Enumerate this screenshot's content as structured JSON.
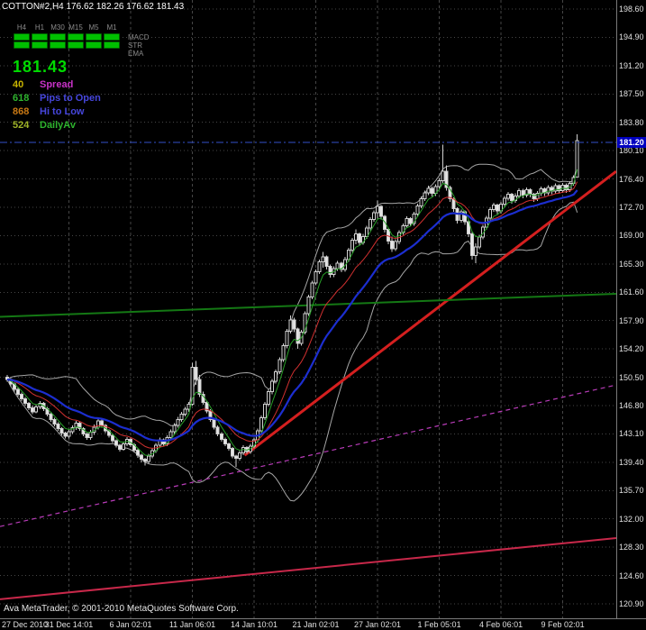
{
  "window": {
    "title_line": "COTTON#2,H4 176.62 182.26 176.62 181.43",
    "footer": "Ava MetaTrader, © 2001-2010 MetaQuotes Software Corp."
  },
  "panel": {
    "timeframes": [
      "H4",
      "H1",
      "M30",
      "M15",
      "M5",
      "M1"
    ],
    "indicators": [
      "MACD",
      "STR",
      "EMA"
    ],
    "big_price": "181.43",
    "big_price_color": "#00dc00",
    "info_rows": [
      {
        "value": "40",
        "label": "Spread",
        "value_color": "#c8b400",
        "label_color": "#c832c8"
      },
      {
        "value": "618",
        "label": "Pips to Open",
        "value_color": "#2eb42e",
        "label_color": "#4646dc"
      },
      {
        "value": "868",
        "label": "Hi to Low",
        "value_color": "#c87814",
        "label_color": "#4646dc"
      },
      {
        "value": "524",
        "label": "DailyAv",
        "value_color": "#a0b428",
        "label_color": "#2eb42e"
      }
    ]
  },
  "price_axis": {
    "ticks": [
      "198.60",
      "194.90",
      "191.20",
      "187.50",
      "183.80",
      "180.10",
      "176.40",
      "172.70",
      "169.00",
      "165.30",
      "161.60",
      "157.90",
      "154.20",
      "150.50",
      "146.80",
      "143.10",
      "139.40",
      "135.70",
      "132.00",
      "128.30",
      "124.60",
      "120.90"
    ],
    "bid_badge": {
      "text": "181.20",
      "bg": "#0000c0"
    }
  },
  "chart_data": {
    "type": "candlestick",
    "symbol": "COTTON#2",
    "timeframe": "H4",
    "current_bar": {
      "open": 176.62,
      "high": 182.26,
      "low": 176.62,
      "close": 181.43
    },
    "y_axis": {
      "min": 120.9,
      "max": 198.6,
      "step": 3.7
    },
    "grid_color": "#464646",
    "candle_colors": {
      "up_fill": "#000000",
      "down_fill": "#e6e6e6",
      "outline": "#cfcfcf"
    },
    "x_axis": {
      "labels": [
        {
          "text": "27 Dec 2010",
          "index": 0
        },
        {
          "text": "31 Dec 14:01",
          "index": 17
        },
        {
          "text": "6 Jan 02:01",
          "index": 34
        },
        {
          "text": "11 Jan 06:01",
          "index": 51
        },
        {
          "text": "14 Jan 10:01",
          "index": 68
        },
        {
          "text": "21 Jan 02:01",
          "index": 85
        },
        {
          "text": "27 Jan 02:01",
          "index": 102
        },
        {
          "text": "1 Feb 05:01",
          "index": 119
        },
        {
          "text": "4 Feb 06:01",
          "index": 136
        },
        {
          "text": "9 Feb 02:01",
          "index": 153
        }
      ]
    },
    "overlays": {
      "bid_line": {
        "price": 181.2,
        "color": "#3350c8",
        "style": "dashdot"
      },
      "moving_averages": [
        {
          "name": "fast-green-ma",
          "period": 5,
          "color": "#28a028",
          "width": 1
        },
        {
          "name": "mid-red-ma",
          "period": 13,
          "color": "#d03030",
          "width": 1
        },
        {
          "name": "slow-blue-ma",
          "period": 24,
          "color": "#1c2ed0",
          "width": 2.2
        }
      ],
      "bollinger": {
        "period": 20,
        "deviation": 2,
        "color": "#a6a6a6"
      },
      "trendlines": [
        {
          "name": "red-uptrend",
          "x1_frac": 0.397,
          "p1": 140.3,
          "x2_frac": 1.0,
          "p2": 177.4,
          "color": "#d41f1f",
          "width": 3,
          "dash": false
        },
        {
          "name": "green-horizontal",
          "x1_frac": 0.0,
          "p1": 158.4,
          "x2_frac": 1.0,
          "p2": 161.4,
          "color": "#147814",
          "width": 2,
          "dash": false
        },
        {
          "name": "magenta-dashed",
          "x1_frac": 0.0,
          "p1": 131.0,
          "x2_frac": 1.0,
          "p2": 149.5,
          "color": "#b93cb9",
          "width": 1.2,
          "dash": true
        },
        {
          "name": "crimson-lower",
          "x1_frac": 0.0,
          "p1": 121.5,
          "x2_frac": 1.0,
          "p2": 129.5,
          "color": "#c8284a",
          "width": 2,
          "dash": false
        }
      ]
    },
    "candles": [
      [
        150.5,
        150.8,
        149.9,
        150.2
      ],
      [
        150.2,
        150.4,
        149.3,
        149.6
      ],
      [
        149.6,
        149.8,
        148.6,
        148.9
      ],
      [
        148.9,
        149.2,
        148.0,
        148.3
      ],
      [
        148.3,
        148.5,
        147.4,
        147.7
      ],
      [
        147.7,
        147.9,
        146.8,
        147.1
      ],
      [
        147.1,
        147.3,
        146.2,
        146.5
      ],
      [
        146.5,
        146.8,
        145.7,
        146.0
      ],
      [
        146.0,
        146.9,
        145.8,
        146.6
      ],
      [
        146.6,
        147.4,
        146.3,
        147.1
      ],
      [
        147.1,
        147.3,
        146.1,
        146.4
      ],
      [
        146.4,
        146.6,
        145.4,
        145.7
      ],
      [
        145.7,
        145.9,
        144.7,
        145.0
      ],
      [
        145.0,
        145.2,
        144.1,
        144.4
      ],
      [
        144.4,
        144.6,
        143.5,
        143.8
      ],
      [
        143.8,
        144.0,
        142.9,
        143.2
      ],
      [
        143.2,
        143.4,
        142.5,
        142.8
      ],
      [
        142.8,
        143.7,
        142.5,
        143.4
      ],
      [
        143.4,
        144.2,
        143.1,
        143.9
      ],
      [
        143.9,
        144.8,
        143.6,
        144.5
      ],
      [
        144.5,
        144.7,
        143.5,
        143.8
      ],
      [
        143.8,
        144.0,
        142.8,
        143.1
      ],
      [
        143.1,
        143.3,
        142.3,
        142.6
      ],
      [
        142.6,
        143.6,
        142.3,
        143.3
      ],
      [
        143.3,
        144.3,
        143.0,
        144.0
      ],
      [
        144.0,
        145.1,
        143.7,
        144.8
      ],
      [
        144.8,
        145.0,
        143.9,
        144.2
      ],
      [
        144.2,
        144.4,
        143.2,
        143.5
      ],
      [
        143.5,
        143.7,
        142.6,
        142.9
      ],
      [
        142.9,
        143.1,
        141.9,
        142.2
      ],
      [
        142.2,
        142.4,
        141.3,
        141.6
      ],
      [
        141.6,
        141.8,
        140.8,
        141.1
      ],
      [
        141.1,
        142.1,
        140.9,
        141.8
      ],
      [
        141.8,
        142.7,
        141.5,
        142.4
      ],
      [
        142.4,
        142.6,
        141.4,
        141.7
      ],
      [
        141.7,
        141.9,
        140.7,
        141.0
      ],
      [
        141.0,
        141.2,
        140.0,
        140.3
      ],
      [
        140.3,
        140.5,
        139.4,
        139.8
      ],
      [
        139.8,
        140.0,
        139.0,
        139.5
      ],
      [
        139.5,
        140.5,
        139.2,
        140.2
      ],
      [
        140.2,
        141.2,
        139.9,
        140.9
      ],
      [
        140.9,
        141.9,
        140.6,
        141.6
      ],
      [
        141.6,
        142.6,
        141.3,
        142.3
      ],
      [
        142.3,
        142.5,
        141.5,
        141.8
      ],
      [
        141.8,
        142.9,
        141.5,
        142.6
      ],
      [
        142.6,
        143.7,
        142.3,
        143.4
      ],
      [
        143.4,
        144.5,
        143.1,
        144.2
      ],
      [
        144.2,
        145.3,
        143.9,
        145.0
      ],
      [
        145.0,
        146.0,
        144.7,
        145.7
      ],
      [
        145.7,
        146.6,
        145.4,
        146.3
      ],
      [
        146.3,
        147.3,
        146.0,
        147.0
      ],
      [
        147.0,
        152.4,
        146.8,
        151.8
      ],
      [
        151.8,
        152.6,
        149.5,
        150.2
      ],
      [
        150.2,
        150.8,
        147.9,
        148.3
      ],
      [
        148.3,
        148.6,
        146.9,
        147.2
      ],
      [
        147.2,
        147.4,
        145.8,
        146.1
      ],
      [
        146.1,
        146.3,
        144.7,
        145.0
      ],
      [
        145.0,
        145.2,
        143.7,
        144.0
      ],
      [
        144.0,
        144.2,
        142.8,
        143.1
      ],
      [
        143.1,
        143.3,
        142.1,
        142.4
      ],
      [
        142.4,
        142.6,
        141.5,
        141.8
      ],
      [
        141.8,
        142.0,
        140.9,
        141.2
      ],
      [
        141.2,
        141.4,
        139.9,
        140.2
      ],
      [
        140.2,
        140.4,
        138.8,
        139.9
      ],
      [
        139.9,
        140.9,
        139.6,
        140.6
      ],
      [
        140.6,
        141.6,
        140.3,
        141.3
      ],
      [
        141.3,
        141.5,
        140.5,
        140.8
      ],
      [
        140.8,
        141.8,
        140.5,
        141.5
      ],
      [
        141.5,
        142.6,
        141.2,
        142.3
      ],
      [
        142.3,
        143.8,
        142.0,
        143.5
      ],
      [
        143.5,
        145.5,
        143.2,
        145.2
      ],
      [
        145.2,
        147.3,
        144.9,
        147.0
      ],
      [
        147.0,
        148.9,
        146.7,
        148.6
      ],
      [
        148.6,
        150.3,
        148.3,
        150.0
      ],
      [
        150.0,
        151.5,
        149.7,
        151.2
      ],
      [
        151.2,
        153.1,
        150.9,
        152.8
      ],
      [
        152.8,
        154.9,
        152.5,
        154.6
      ],
      [
        154.6,
        156.8,
        154.3,
        156.5
      ],
      [
        156.5,
        158.6,
        156.2,
        158.0
      ],
      [
        158.0,
        158.3,
        156.4,
        156.8
      ],
      [
        156.8,
        157.0,
        154.2,
        154.9
      ],
      [
        154.9,
        156.7,
        154.6,
        156.4
      ],
      [
        156.4,
        159.1,
        156.1,
        158.8
      ],
      [
        158.8,
        161.3,
        158.5,
        161.0
      ],
      [
        161.0,
        163.1,
        160.7,
        162.8
      ],
      [
        162.8,
        164.6,
        162.5,
        164.3
      ],
      [
        164.3,
        165.9,
        164.0,
        165.6
      ],
      [
        165.6,
        166.9,
        164.8,
        166.2
      ],
      [
        166.2,
        166.4,
        164.6,
        165.0
      ],
      [
        165.0,
        165.2,
        163.5,
        163.9
      ],
      [
        163.9,
        165.0,
        163.6,
        164.7
      ],
      [
        164.7,
        165.7,
        164.4,
        165.4
      ],
      [
        165.4,
        165.6,
        164.2,
        164.6
      ],
      [
        164.6,
        166.2,
        164.3,
        165.9
      ],
      [
        165.9,
        167.4,
        165.6,
        167.1
      ],
      [
        167.1,
        168.7,
        166.8,
        168.4
      ],
      [
        168.4,
        169.8,
        167.9,
        169.2
      ],
      [
        169.2,
        169.4,
        167.7,
        168.1
      ],
      [
        168.1,
        169.2,
        167.8,
        168.9
      ],
      [
        168.9,
        170.3,
        168.6,
        170.0
      ],
      [
        170.0,
        171.4,
        169.7,
        171.1
      ],
      [
        171.1,
        172.3,
        170.8,
        172.0
      ],
      [
        172.0,
        173.6,
        171.2,
        172.8
      ],
      [
        172.8,
        173.0,
        171.1,
        171.5
      ],
      [
        171.5,
        171.7,
        169.4,
        169.8
      ],
      [
        169.8,
        170.0,
        167.9,
        168.3
      ],
      [
        168.3,
        168.9,
        166.9,
        167.3
      ],
      [
        167.3,
        168.5,
        167.0,
        168.2
      ],
      [
        168.2,
        169.7,
        167.9,
        169.4
      ],
      [
        169.4,
        170.6,
        169.1,
        170.3
      ],
      [
        170.3,
        171.5,
        170.0,
        171.2
      ],
      [
        171.2,
        171.4,
        170.2,
        170.6
      ],
      [
        170.6,
        172.1,
        170.3,
        171.8
      ],
      [
        171.8,
        173.2,
        171.5,
        172.9
      ],
      [
        172.9,
        174.1,
        172.6,
        173.8
      ],
      [
        173.8,
        174.9,
        173.5,
        174.6
      ],
      [
        174.6,
        175.5,
        174.3,
        175.2
      ],
      [
        175.2,
        175.4,
        174.1,
        174.5
      ],
      [
        174.5,
        175.7,
        174.2,
        175.4
      ],
      [
        175.4,
        176.5,
        175.1,
        176.2
      ],
      [
        176.2,
        180.9,
        175.8,
        177.4
      ],
      [
        177.4,
        178.2,
        174.9,
        175.3
      ],
      [
        175.3,
        175.5,
        173.4,
        173.8
      ],
      [
        173.8,
        174.0,
        172.1,
        172.5
      ],
      [
        172.5,
        172.7,
        170.6,
        171.0
      ],
      [
        171.0,
        172.4,
        170.7,
        172.1
      ],
      [
        172.1,
        172.3,
        170.4,
        170.8
      ],
      [
        170.8,
        171.0,
        168.8,
        169.2
      ],
      [
        169.2,
        169.6,
        165.9,
        166.4
      ],
      [
        166.4,
        168.0,
        165.4,
        167.5
      ],
      [
        167.5,
        169.1,
        167.2,
        168.8
      ],
      [
        168.8,
        170.4,
        168.5,
        170.1
      ],
      [
        170.1,
        171.6,
        169.8,
        171.3
      ],
      [
        171.3,
        172.7,
        171.0,
        172.4
      ],
      [
        172.4,
        173.3,
        172.1,
        173.0
      ],
      [
        173.0,
        173.2,
        171.8,
        172.2
      ],
      [
        172.2,
        173.4,
        171.9,
        173.1
      ],
      [
        173.1,
        174.2,
        172.8,
        173.9
      ],
      [
        173.9,
        174.7,
        173.6,
        174.4
      ],
      [
        174.4,
        174.6,
        173.2,
        173.6
      ],
      [
        173.6,
        174.5,
        173.3,
        174.2
      ],
      [
        174.2,
        175.2,
        173.9,
        174.9
      ],
      [
        174.9,
        175.1,
        173.9,
        174.3
      ],
      [
        174.3,
        175.3,
        174.0,
        175.0
      ],
      [
        175.0,
        175.2,
        174.0,
        174.4
      ],
      [
        174.4,
        174.6,
        173.4,
        173.8
      ],
      [
        173.8,
        174.8,
        173.5,
        174.5
      ],
      [
        174.5,
        175.4,
        174.2,
        175.1
      ],
      [
        175.1,
        175.3,
        174.2,
        174.6
      ],
      [
        174.6,
        175.6,
        174.3,
        175.3
      ],
      [
        175.3,
        175.5,
        174.4,
        174.8
      ],
      [
        174.8,
        175.8,
        174.5,
        175.5
      ],
      [
        175.5,
        175.7,
        174.5,
        174.9
      ],
      [
        174.9,
        175.9,
        174.6,
        175.6
      ],
      [
        175.6,
        175.8,
        174.6,
        175.0
      ],
      [
        175.0,
        176.1,
        174.7,
        175.8
      ],
      [
        175.8,
        176.9,
        175.5,
        176.6
      ],
      [
        176.62,
        182.26,
        176.62,
        181.43
      ]
    ]
  }
}
